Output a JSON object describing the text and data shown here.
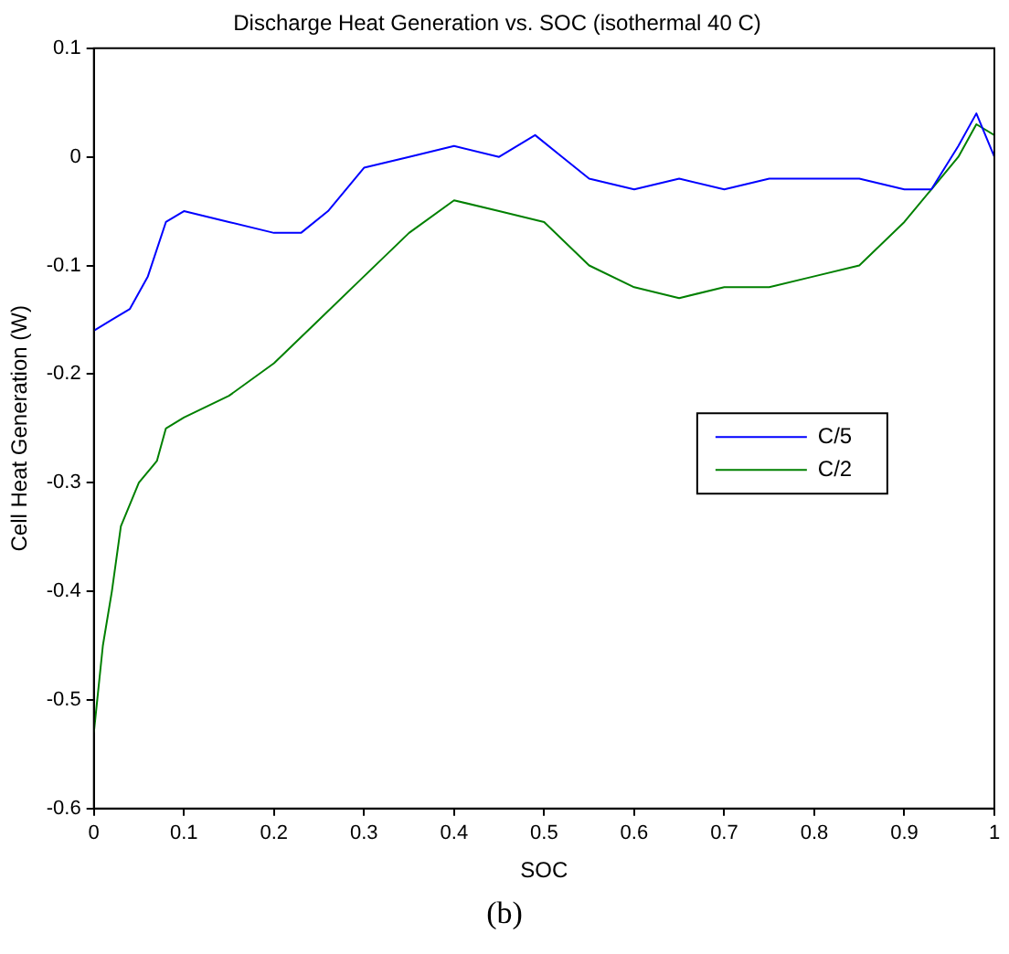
{
  "chart_data": {
    "type": "line",
    "title": "Discharge Heat Generation vs. SOC (isothermal 40 C)",
    "xlabel": "SOC",
    "ylabel": "Cell Heat Generation (W)",
    "annotations": [
      "(b)"
    ],
    "x": [
      0,
      0.02,
      0.04,
      0.06,
      0.08,
      0.1,
      0.15,
      0.2,
      0.23,
      0.26,
      0.3,
      0.35,
      0.4,
      0.45,
      0.49,
      0.52,
      0.55,
      0.6,
      0.65,
      0.7,
      0.75,
      0.8,
      0.85,
      0.9,
      0.93,
      0.96,
      0.98,
      1.0
    ],
    "series": [
      {
        "name": "C/5",
        "color": "#0000ff",
        "values": [
          -0.16,
          -0.15,
          -0.14,
          -0.11,
          -0.06,
          -0.05,
          -0.06,
          -0.07,
          -0.07,
          -0.05,
          -0.01,
          0.0,
          0.01,
          0.0,
          0.02,
          0.0,
          -0.02,
          -0.03,
          -0.02,
          -0.03,
          -0.02,
          -0.02,
          -0.02,
          -0.03,
          -0.03,
          0.01,
          0.04,
          0.0
        ]
      },
      {
        "name": "C/2",
        "color": "#008000",
        "x": [
          0,
          0.01,
          0.02,
          0.03,
          0.05,
          0.07,
          0.08,
          0.1,
          0.15,
          0.2,
          0.25,
          0.3,
          0.35,
          0.4,
          0.45,
          0.5,
          0.55,
          0.6,
          0.65,
          0.7,
          0.75,
          0.8,
          0.85,
          0.9,
          0.93,
          0.96,
          0.98,
          1.0
        ],
        "values": [
          -0.53,
          -0.45,
          -0.4,
          -0.34,
          -0.3,
          -0.28,
          -0.25,
          -0.24,
          -0.22,
          -0.19,
          -0.15,
          -0.11,
          -0.07,
          -0.04,
          -0.05,
          -0.06,
          -0.1,
          -0.12,
          -0.13,
          -0.12,
          -0.12,
          -0.11,
          -0.1,
          -0.06,
          -0.03,
          0.0,
          0.03,
          0.02
        ]
      }
    ],
    "xlim": [
      0,
      1
    ],
    "xticks": [
      0,
      0.1,
      0.2,
      0.3,
      0.4,
      0.5,
      0.6,
      0.7,
      0.8,
      0.9,
      1
    ],
    "ylim": [
      -0.6,
      0.1
    ],
    "yticks": [
      -0.6,
      -0.5,
      -0.4,
      -0.3,
      -0.2,
      -0.1,
      0,
      0.1
    ],
    "grid": false,
    "legend": "right",
    "marker": "none",
    "line_style": "solid"
  }
}
